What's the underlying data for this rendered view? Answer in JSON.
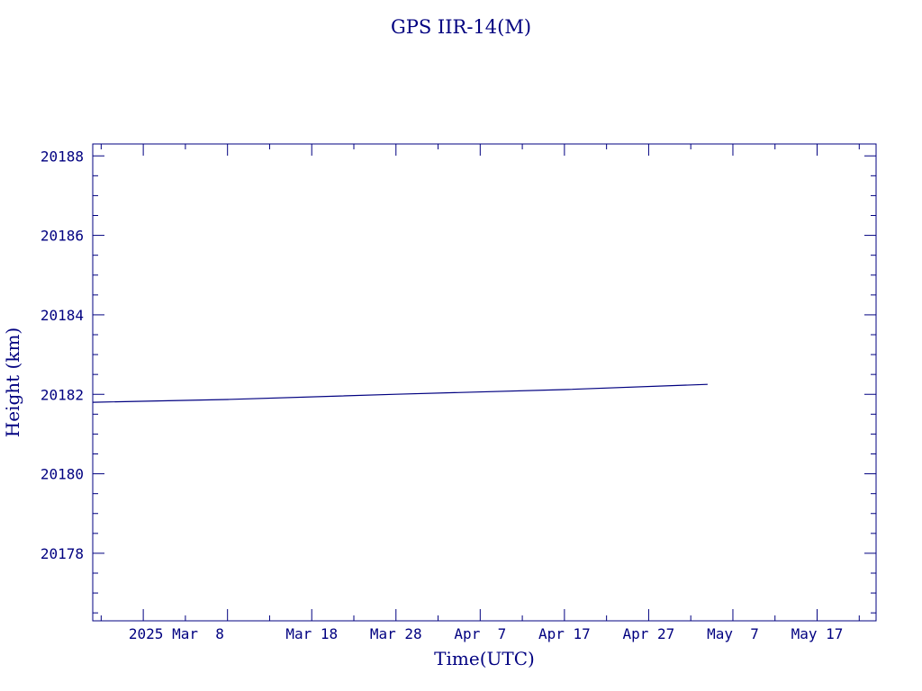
{
  "chart_data": {
    "type": "line",
    "title": "GPS IIR-14(M)",
    "xlabel": "Time(UTC)",
    "ylabel": "Height (km)",
    "xlim": [
      "2025-02-20",
      "2025-05-24"
    ],
    "ylim": [
      20176.3,
      20188.3
    ],
    "y_major_ticks": [
      20178,
      20180,
      20182,
      20184,
      20186,
      20188
    ],
    "y_tick_labels": [
      "20178",
      "20180",
      "20182",
      "20184",
      "20186",
      "20188"
    ],
    "y_minor_step": 0.5,
    "x_major_ticks": [
      "2025-02-26",
      "2025-03-08",
      "2025-03-18",
      "2025-03-28",
      "2025-04-07",
      "2025-04-17",
      "2025-04-27",
      "2025-05-07",
      "2025-05-17"
    ],
    "x_tick_labels": [
      "2025 Mar  8",
      "Mar 18",
      "Mar 28",
      "Apr  7",
      "Apr 17",
      "Apr 27",
      "May  7",
      "May 17"
    ],
    "x_minor_step_days": 5,
    "grid": false,
    "series": [
      {
        "x": [
          "2025-02-20",
          "2025-03-08",
          "2025-03-28",
          "2025-04-17",
          "2025-05-04"
        ],
        "values": [
          20181.8,
          20181.87,
          20182.0,
          20182.12,
          20182.25
        ]
      }
    ]
  }
}
